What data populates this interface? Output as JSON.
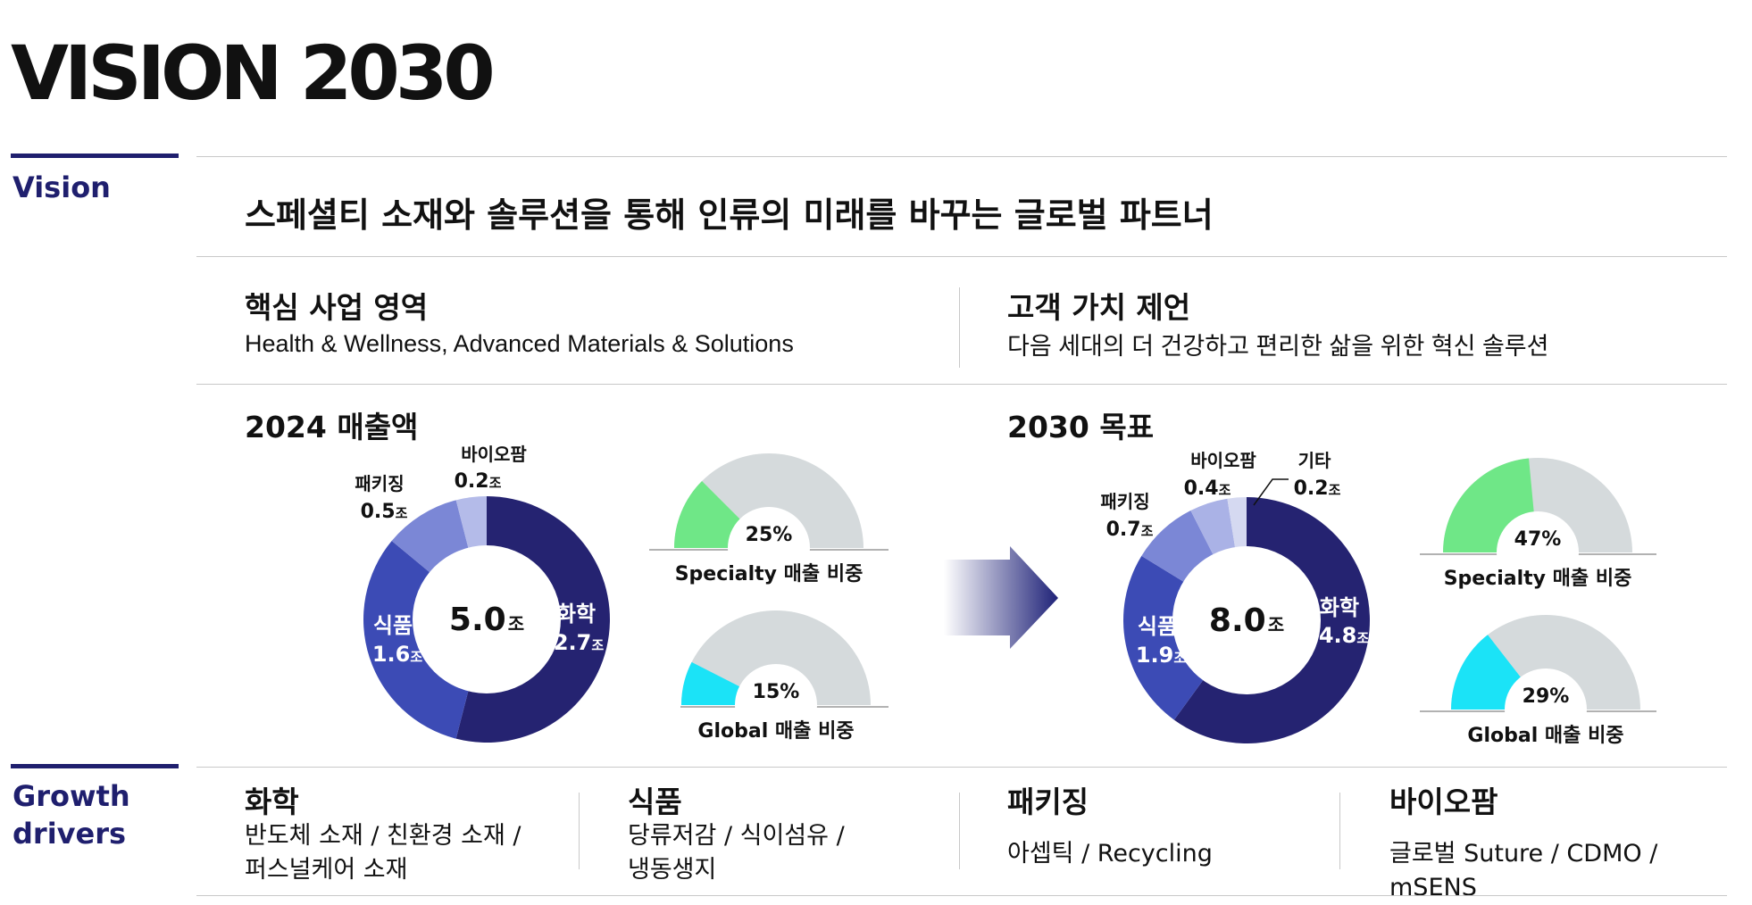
{
  "title": "VISION 2030",
  "vision": {
    "label": "Vision",
    "statement": "스페셜티 소재와 솔루션을 통해 인류의 미래를 바꾸는 글로벌 파트너"
  },
  "core_business": {
    "heading": "핵심 사업 영역",
    "text": "Health & Wellness, Advanced Materials & Solutions"
  },
  "customer_value": {
    "heading": "고객 가치 제언",
    "text": "다음 세대의 더 건강하고 편리한 삶을 위한 혁신 솔루션"
  },
  "revenue_2024": {
    "heading": "2024 매출액",
    "total": "5.0",
    "unit": "조",
    "segments": [
      {
        "name": "화학",
        "value": "2.7",
        "color": "#252371"
      },
      {
        "name": "식품",
        "value": "1.6",
        "color": "#3c4bb5"
      },
      {
        "name": "패키징",
        "value": "0.5",
        "color": "#7b87d6"
      },
      {
        "name": "바이오팜",
        "value": "0.2",
        "color": "#b4bbe9"
      }
    ],
    "specialty": {
      "pct": "25%",
      "label": "Specialty 매출 비중"
    },
    "global": {
      "pct": "15%",
      "label": "Global 매출 비중"
    }
  },
  "target_2030": {
    "heading": "2030 목표",
    "total": "8.0",
    "unit": "조",
    "segments": [
      {
        "name": "화학",
        "value": "4.8",
        "color": "#252371"
      },
      {
        "name": "식품",
        "value": "1.9",
        "color": "#3c4bb5"
      },
      {
        "name": "패키징",
        "value": "0.7",
        "color": "#7b87d6"
      },
      {
        "name": "바이오팜",
        "value": "0.4",
        "color": "#aab2e6"
      },
      {
        "name": "기타",
        "value": "0.2",
        "color": "#d5d9f1"
      }
    ],
    "specialty": {
      "pct": "47%",
      "label": "Specialty 매출 비중"
    },
    "global": {
      "pct": "29%",
      "label": "Global 매출 비중"
    }
  },
  "chart_data": [
    {
      "type": "pie",
      "title": "2024 매출액",
      "categories": [
        "화학",
        "식품",
        "패키징",
        "바이오팜"
      ],
      "values": [
        2.7,
        1.6,
        0.5,
        0.2
      ],
      "center_label": "5.0조"
    },
    {
      "type": "pie",
      "title": "2030 목표",
      "categories": [
        "화학",
        "식품",
        "패키징",
        "바이오팜",
        "기타"
      ],
      "values": [
        4.8,
        1.9,
        0.7,
        0.4,
        0.2
      ],
      "center_label": "8.0조"
    },
    {
      "type": "pie",
      "title": "Specialty 매출 비중",
      "categories": [
        "2024"
      ],
      "values": [
        25
      ]
    },
    {
      "type": "pie",
      "title": "Global 매출 비중",
      "categories": [
        "2024"
      ],
      "values": [
        15
      ]
    },
    {
      "type": "pie",
      "title": "Specialty 매출 비중",
      "categories": [
        "2030"
      ],
      "values": [
        47
      ]
    },
    {
      "type": "pie",
      "title": "Global 매출 비중",
      "categories": [
        "2030"
      ],
      "values": [
        29
      ]
    }
  ],
  "colors": {
    "accent": "#1f1f6e",
    "specialty": "#6fe787",
    "global": "#1be3f7",
    "gauge_bg": "#d5dadc"
  },
  "growth_drivers": {
    "label_line1": "Growth",
    "label_line2": "drivers",
    "items": [
      {
        "heading": "화학",
        "line1": "반도체 소재 / 친환경 소재 /",
        "line2": "퍼스널케어 소재"
      },
      {
        "heading": "식품",
        "line1": "당류저감 / 식이섬유 /",
        "line2": "냉동생지"
      },
      {
        "heading": "패키징",
        "line1": "아셉틱 / Recycling",
        "line2": ""
      },
      {
        "heading": "바이오팜",
        "line1": "글로벌 Suture / CDMO / mSENS",
        "line2": ""
      }
    ]
  }
}
